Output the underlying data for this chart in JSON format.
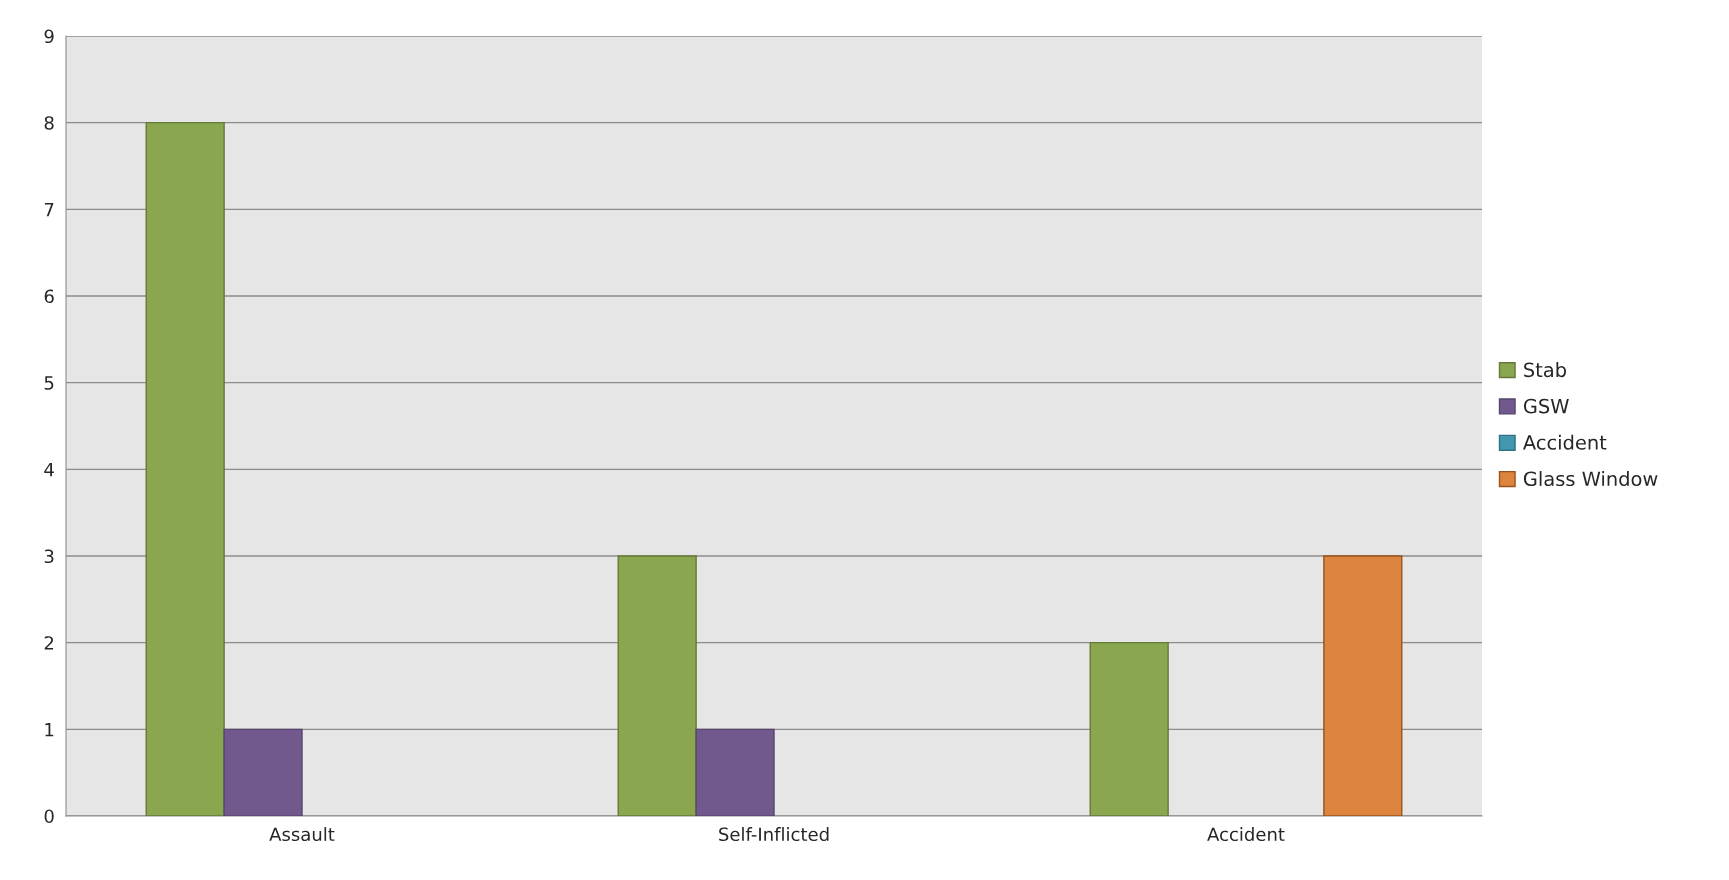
{
  "chart_data": {
    "type": "bar",
    "categories": [
      "Assault",
      "Self-Inflicted",
      "Accident"
    ],
    "series": [
      {
        "name": "Stab",
        "color": "#8aa64e",
        "values": [
          8,
          3,
          2
        ]
      },
      {
        "name": "GSW",
        "color": "#71598e",
        "values": [
          1,
          1,
          0
        ]
      },
      {
        "name": "Accident",
        "color": "#4198af",
        "values": [
          0,
          0,
          0
        ]
      },
      {
        "name": "Glass Window",
        "color": "#dd843e",
        "values": [
          0,
          0,
          3
        ]
      }
    ],
    "ylim": [
      0,
      9
    ],
    "yticks": [
      0,
      1,
      2,
      3,
      4,
      5,
      6,
      7,
      8,
      9
    ],
    "grid": "y",
    "legend": "right"
  }
}
